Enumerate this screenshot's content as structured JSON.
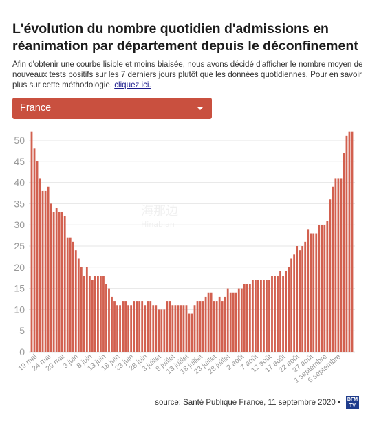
{
  "header": {
    "title": "L'évolution du nombre quotidien d'admissions en réanimation par département depuis le déconfinement",
    "subtitle": "Afin d'obtenir une courbe lisible et moins biaisée, nous avons décidé d'afficher le nombre moyen de nouveaux tests positifs sur les 7 derniers jours plutôt que les données quotidiennes. Pour en savoir plus sur cette méthodologie, ",
    "link_label": "cliquez ici."
  },
  "selector": {
    "selected": "France"
  },
  "footer": {
    "source": "source: Santé Publique France, 11 septembre 2020 •",
    "logo": "BFM TV"
  },
  "colors": {
    "bar": "#d2604f",
    "dropdown": "#c9503f",
    "grid": "#e6e6e6",
    "axis_text": "#999999"
  },
  "chart_data": {
    "type": "bar",
    "title": "",
    "xlabel": "",
    "ylabel": "",
    "ylim": [
      0,
      52
    ],
    "yticks": [
      0,
      5,
      10,
      15,
      20,
      25,
      30,
      35,
      40,
      45,
      50
    ],
    "grid": true,
    "x_tick_labels": [
      "19 mai",
      "24 mai",
      "29 mai",
      "3 juin",
      "8 juin",
      "13 juin",
      "18 juin",
      "23 juin",
      "28 juin",
      "3 juillet",
      "8 juillet",
      "13 juillet",
      "18 juillet",
      "23 juillet",
      "28 juillet",
      "2 août",
      "7 août",
      "12 août",
      "17 août",
      "22 août",
      "27 août",
      "1 septembre",
      "6 septembre"
    ],
    "tick_every": 5,
    "values": [
      52,
      48,
      45,
      41,
      38,
      38,
      39,
      35,
      33,
      34,
      33,
      33,
      32,
      27,
      27,
      26,
      24,
      22,
      20,
      18,
      20,
      18,
      17,
      18,
      18,
      18,
      18,
      16,
      15,
      13,
      12,
      11,
      11,
      12,
      12,
      11,
      11,
      12,
      12,
      12,
      12,
      11,
      12,
      12,
      11,
      11,
      10,
      10,
      10,
      12,
      12,
      11,
      11,
      11,
      11,
      11,
      11,
      9,
      9,
      11,
      12,
      12,
      12,
      13,
      14,
      14,
      12,
      12,
      13,
      12,
      13,
      15,
      14,
      14,
      14,
      15,
      15,
      16,
      16,
      16,
      17,
      17,
      17,
      17,
      17,
      17,
      17,
      18,
      18,
      18,
      19,
      18,
      19,
      20,
      22,
      23,
      25,
      24,
      25,
      26,
      29,
      28,
      28,
      28,
      30,
      30,
      30,
      31,
      36,
      39,
      41,
      41,
      41,
      47,
      51,
      52,
      52
    ]
  }
}
